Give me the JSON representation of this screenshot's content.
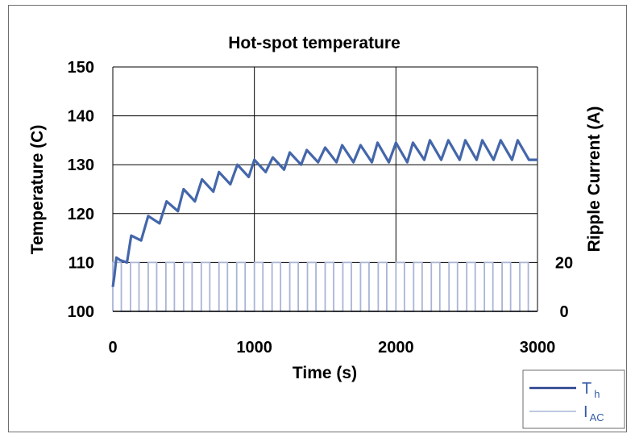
{
  "chart_data": {
    "type": "line",
    "title": "Hot-spot temperature",
    "xlabel": "Time (s)",
    "ylabel": "Temperature (C)",
    "y2label": "Ripple Current (A)",
    "xlim": [
      0,
      3000
    ],
    "ylim": [
      100,
      150
    ],
    "y2lim": [
      0,
      20
    ],
    "x_ticks": [
      "0",
      "1000",
      "2000",
      "3000"
    ],
    "y_ticks": [
      "100",
      "110",
      "120",
      "130",
      "140",
      "150"
    ],
    "y2_ticks": [
      "0",
      "20"
    ],
    "grid": true,
    "legend_position": "bottom-right",
    "series": [
      {
        "name": "T",
        "name_sub": "h",
        "axis": "left",
        "color": "#4466aa",
        "x": [
          0,
          10,
          25,
          50,
          100,
          130,
          200,
          250,
          330,
          380,
          460,
          500,
          580,
          630,
          710,
          750,
          830,
          880,
          960,
          1000,
          1080,
          1130,
          1210,
          1250,
          1330,
          1370,
          1450,
          1500,
          1580,
          1620,
          1700,
          1750,
          1830,
          1870,
          1950,
          2000,
          2080,
          2120,
          2200,
          2240,
          2320,
          2370,
          2450,
          2490,
          2570,
          2610,
          2690,
          2740,
          2820,
          2860,
          2940,
          3000
        ],
        "y": [
          105,
          107,
          111,
          110.5,
          110,
          115.5,
          114.5,
          119.5,
          118,
          122.5,
          120.5,
          125,
          122.5,
          127,
          124.5,
          128.5,
          126,
          130,
          127.5,
          131,
          128.5,
          131.5,
          129,
          132.5,
          130,
          133,
          130.5,
          133.5,
          130.5,
          134,
          130.5,
          134,
          130.5,
          134.5,
          130.5,
          134.5,
          130.5,
          134.5,
          131,
          135,
          131,
          135,
          131,
          135,
          131,
          135,
          131,
          135,
          131,
          135,
          131,
          131
        ]
      },
      {
        "name": "I",
        "name_sub": "AC",
        "axis": "right",
        "color": "#a9b5d6",
        "pulse_period": 125,
        "pulse_on": 60,
        "values": [
          0,
          20
        ]
      }
    ]
  }
}
